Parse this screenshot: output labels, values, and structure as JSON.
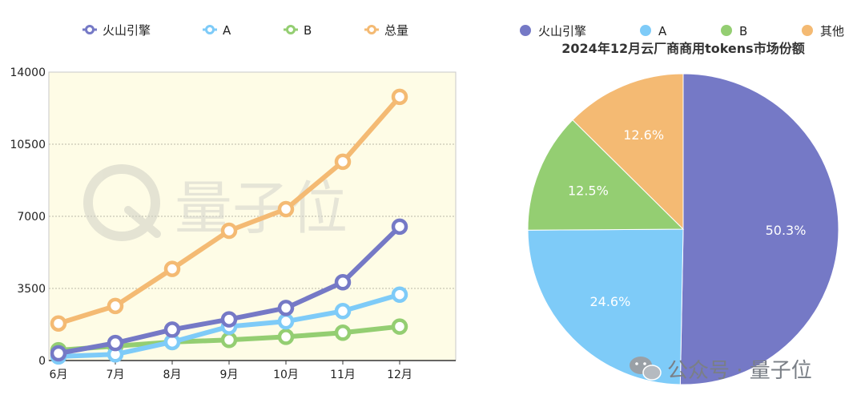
{
  "chart_data": [
    {
      "type": "line",
      "categories": [
        "6月",
        "7月",
        "8月",
        "9月",
        "10月",
        "11月",
        "12月"
      ],
      "series": [
        {
          "name": "火山引擎",
          "color": "#7579C6",
          "values": [
            350,
            850,
            1500,
            2000,
            2550,
            3800,
            6500
          ]
        },
        {
          "name": "A",
          "color": "#7ECBF8",
          "values": [
            200,
            300,
            900,
            1650,
            1900,
            2400,
            3200
          ]
        },
        {
          "name": "B",
          "color": "#94CE72",
          "values": [
            500,
            700,
            900,
            1000,
            1150,
            1350,
            1650
          ]
        },
        {
          "name": "总量",
          "color": "#F4BA73",
          "values": [
            1800,
            2650,
            4450,
            6300,
            7350,
            9650,
            12800
          ]
        }
      ],
      "yticks": [
        "0",
        "3500",
        "7000",
        "10500",
        "14000"
      ],
      "ylim": [
        0,
        14000
      ],
      "grid": true,
      "legend": "top",
      "plot_background": "#FEFCE6"
    },
    {
      "type": "pie",
      "title": "2024年12月云厂商商用tokens市场份额",
      "slices": [
        {
          "label": "火山引擎",
          "value": 50.3,
          "display": "50.3%",
          "color": "#7579C6"
        },
        {
          "label": "A",
          "value": 24.6,
          "display": "24.6%",
          "color": "#7ECBF8"
        },
        {
          "label": "B",
          "value": 12.5,
          "display": "12.5%",
          "color": "#94CE72"
        },
        {
          "label": "其他",
          "value": 12.6,
          "display": "12.6%",
          "color": "#F4BA73"
        }
      ],
      "legend": "top"
    }
  ],
  "watermark": {
    "text": "量子位"
  },
  "footer": {
    "wechat_label": "公众号 · 量子位"
  }
}
